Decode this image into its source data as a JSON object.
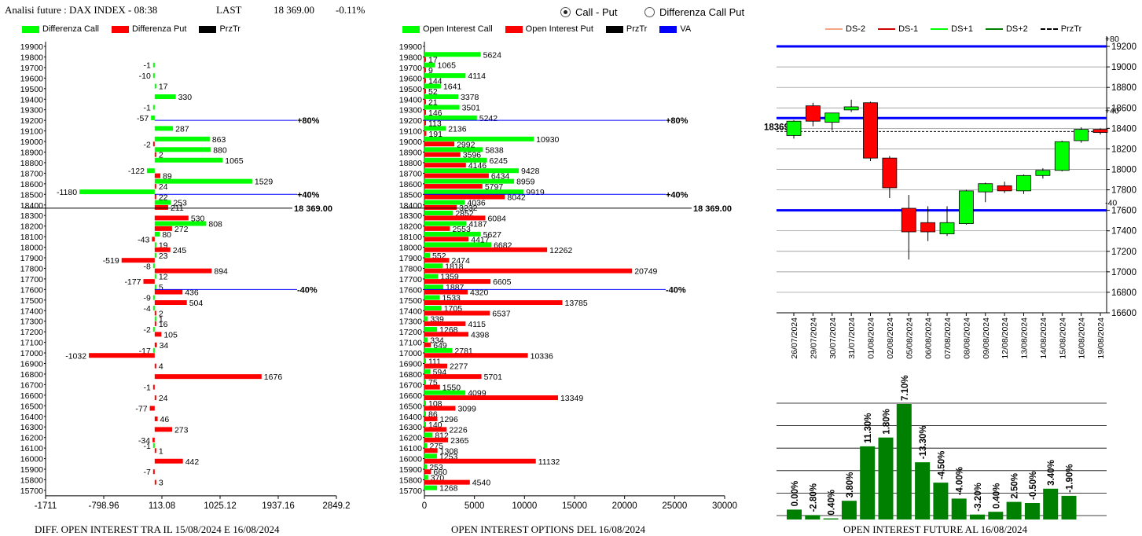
{
  "header": {
    "title": "Analisi future : DAX INDEX - 08:38",
    "last_label": "LAST",
    "last_value": "18 369.00",
    "change": "-0.11%"
  },
  "toggle": {
    "opt1": "Call - Put",
    "opt2": "Differenza Call Put",
    "selected": "Call - Put"
  },
  "colors": {
    "green": "#00ff00",
    "red": "#ff0000",
    "darkgreen": "#008000",
    "blue": "#0000ff",
    "black": "#000000"
  },
  "chart_data": [
    {
      "type": "bar",
      "orientation": "horizontal",
      "caption": "DIFF. OPEN INTEREST TRA IL 15/08/2024 E 16/08/2024",
      "legend": [
        "Differenza Call",
        "Differenza Put",
        "PrzTr"
      ],
      "strikes": [
        19900,
        19800,
        19700,
        19600,
        19500,
        19400,
        19300,
        19200,
        19100,
        19000,
        18900,
        18800,
        18700,
        18600,
        18500,
        18400,
        18300,
        18200,
        18100,
        18000,
        17900,
        17800,
        17700,
        17600,
        17500,
        17400,
        17300,
        17200,
        17100,
        17000,
        16900,
        16800,
        16700,
        16600,
        16500,
        16400,
        16300,
        16200,
        16100,
        16000,
        15900,
        15800,
        15700
      ],
      "series": [
        {
          "name": "Differenza Call",
          "values": [
            null,
            null,
            -1,
            -10,
            17,
            330,
            -1,
            -57,
            287,
            863,
            880,
            1065,
            -122,
            1529,
            -1180,
            253,
            null,
            808,
            80,
            19,
            23,
            -8,
            12,
            5,
            -9,
            -4,
            1,
            -2,
            null,
            -17,
            null,
            null,
            null,
            null,
            null,
            null,
            null,
            null,
            -1,
            null,
            null,
            null,
            null
          ]
        },
        {
          "name": "Differenza Put",
          "values": [
            null,
            null,
            null,
            null,
            null,
            null,
            null,
            null,
            null,
            -2,
            2,
            null,
            89,
            24,
            22,
            211,
            530,
            272,
            -43,
            245,
            -519,
            894,
            -177,
            436,
            504,
            2,
            16,
            105,
            34,
            -1032,
            4,
            1676,
            -1,
            24,
            -77,
            46,
            273,
            -34,
            1,
            442,
            -7,
            3,
            null
          ]
        }
      ],
      "markers": [
        {
          "label": "+80%",
          "strike": 19200
        },
        {
          "label": "+40%",
          "strike": 18500
        },
        {
          "label": "-40%",
          "strike": 17600
        }
      ],
      "przTr": {
        "label": "18 369.00",
        "value": 18369
      },
      "xticks": [
        "-1711",
        "-798.96",
        "113.08",
        "1025.12",
        "1937.16",
        "2849.2"
      ],
      "xlim": [
        -1711,
        2849.2
      ]
    },
    {
      "type": "bar",
      "orientation": "horizontal",
      "caption": "OPEN INTEREST OPTIONS DEL 16/08/2024",
      "legend": [
        "Open Interest Call",
        "Open Interest Put",
        "PrzTr",
        "VA"
      ],
      "strikes": [
        19900,
        19800,
        19700,
        19600,
        19500,
        19400,
        19300,
        19200,
        19100,
        19000,
        18900,
        18800,
        18700,
        18600,
        18500,
        18400,
        18300,
        18200,
        18100,
        18000,
        17900,
        17800,
        17700,
        17600,
        17500,
        17400,
        17300,
        17200,
        17100,
        17000,
        16900,
        16800,
        16700,
        16600,
        16500,
        16400,
        16300,
        16200,
        16100,
        16000,
        15900,
        15800,
        15700
      ],
      "series": [
        {
          "name": "Open Interest Call",
          "values": [
            null,
            5624,
            1065,
            4114,
            1641,
            3378,
            3501,
            5242,
            2136,
            10930,
            5838,
            6245,
            9428,
            8959,
            9919,
            4036,
            2852,
            4187,
            5627,
            6682,
            552,
            1818,
            1359,
            1887,
            1533,
            1705,
            339,
            1268,
            334,
            2781,
            111,
            594,
            75,
            4099,
            108,
            86,
            140,
            812,
            275,
            1253,
            253,
            370,
            1268
          ]
        },
        {
          "name": "Open Interest Put",
          "values": [
            null,
            17,
            9,
            144,
            52,
            21,
            146,
            113,
            191,
            2992,
            3596,
            4146,
            6434,
            5797,
            8042,
            3232,
            6084,
            2553,
            4417,
            12262,
            2474,
            20749,
            6605,
            4320,
            13785,
            6537,
            4115,
            4398,
            649,
            10336,
            2277,
            5701,
            1550,
            13349,
            3099,
            1296,
            2226,
            2365,
            1308,
            11132,
            660,
            4540,
            null
          ]
        }
      ],
      "markers": [
        {
          "label": "+80%",
          "strike": 19200
        },
        {
          "label": "+40%",
          "strike": 18500
        },
        {
          "label": "-40%",
          "strike": 17600
        }
      ],
      "przTr": {
        "label": "18 369.00",
        "value": 18369
      },
      "xticks": [
        "0",
        "5000",
        "10000",
        "15000",
        "20000",
        "25000",
        "30000"
      ],
      "xlim": [
        0,
        30000
      ]
    },
    {
      "type": "candlestick",
      "legend": [
        "DS-2",
        "DS-1",
        "DS+1",
        "DS+2",
        "PrzTr"
      ],
      "dates": [
        "26/07/2024",
        "29/07/2024",
        "30/07/2024",
        "31/07/2024",
        "01/08/2024",
        "02/08/2024",
        "05/08/2024",
        "06/08/2024",
        "07/08/2024",
        "08/08/2024",
        "09/08/2024",
        "12/08/2024",
        "13/08/2024",
        "14/08/2024",
        "15/08/2024",
        "16/08/2024",
        "19/08/2024"
      ],
      "candles": [
        {
          "o": 18330,
          "h": 18480,
          "l": 18300,
          "c": 18470
        },
        {
          "o": 18620,
          "h": 18650,
          "l": 18420,
          "c": 18470
        },
        {
          "o": 18460,
          "h": 18540,
          "l": 18380,
          "c": 18550
        },
        {
          "o": 18580,
          "h": 18680,
          "l": 18560,
          "c": 18610
        },
        {
          "o": 18650,
          "h": 18660,
          "l": 18080,
          "c": 18110
        },
        {
          "o": 18110,
          "h": 18130,
          "l": 17720,
          "c": 17820
        },
        {
          "o": 17620,
          "h": 17750,
          "l": 17120,
          "c": 17390
        },
        {
          "o": 17480,
          "h": 17640,
          "l": 17300,
          "c": 17390
        },
        {
          "o": 17370,
          "h": 17640,
          "l": 17350,
          "c": 17480
        },
        {
          "o": 17470,
          "h": 17800,
          "l": 17460,
          "c": 17790
        },
        {
          "o": 17780,
          "h": 17870,
          "l": 17680,
          "c": 17860
        },
        {
          "o": 17840,
          "h": 17880,
          "l": 17770,
          "c": 17790
        },
        {
          "o": 17790,
          "h": 17950,
          "l": 17760,
          "c": 17940
        },
        {
          "o": 17940,
          "h": 18010,
          "l": 17910,
          "c": 17990
        },
        {
          "o": 17990,
          "h": 18280,
          "l": 17980,
          "c": 18270
        },
        {
          "o": 18280,
          "h": 18410,
          "l": 18260,
          "c": 18390
        },
        {
          "o": 18390,
          "h": 18400,
          "l": 18340,
          "c": 18360
        }
      ],
      "bands": [
        {
          "label": "+80",
          "value": 19200
        },
        {
          "label": "+40",
          "value": 18500
        },
        {
          "label": "-40",
          "value": 17600
        }
      ],
      "przTr": {
        "label": "18369",
        "value": 18369
      },
      "yticks": [
        16600,
        16800,
        17000,
        17200,
        17400,
        17600,
        17800,
        18000,
        18200,
        18400,
        18600,
        18800,
        19000,
        19200
      ],
      "ylim": [
        16600,
        19300
      ]
    },
    {
      "type": "bar",
      "caption": "OPEN INTEREST FUTURE AL 16/08/2024",
      "values": [
        18,
        8,
        2,
        34,
        133,
        149,
        210,
        104,
        67,
        38,
        9,
        14,
        32,
        30,
        56,
        43
      ],
      "labels": [
        "0.00%",
        "-2.80%",
        "0.40%",
        "3.80%",
        "11.30%",
        "1.80%",
        "7.10%",
        "-13.30%",
        "-4.50%",
        "-4.00%",
        "-3.20%",
        "0.40%",
        "2.50%",
        "-0.50%",
        "3.40%",
        "-1.90%"
      ]
    }
  ]
}
